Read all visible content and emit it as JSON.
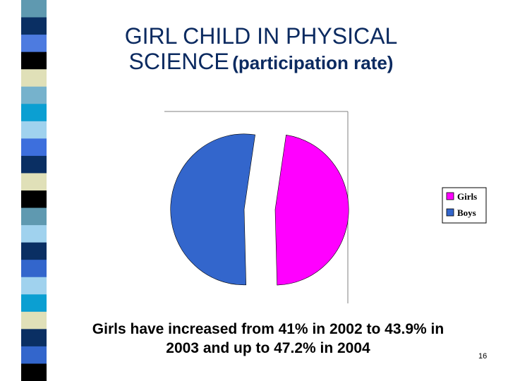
{
  "title": {
    "line1": "GIRL CHILD IN PHYSICAL",
    "line2_main": "SCIENCE",
    "line2_sub": "(participation rate)"
  },
  "chart_data": {
    "type": "pie",
    "categories": [
      "Girls",
      "Boys"
    ],
    "values": [
      47.2,
      52.8
    ],
    "colors": [
      "#ff00ff",
      "#3366cc"
    ],
    "legend_placement": "right",
    "exploded": true
  },
  "caption": {
    "line1": "Girls have increased from 41% in 2002 to 43.9% in",
    "line2": "2003 and up to 47.2% in 2004"
  },
  "slide_number": "16",
  "stripe_colors": [
    "#5f99b0",
    "#0a2f63",
    "#4d7be0",
    "#000000",
    "#e0e0b8",
    "#76b2cc",
    "#0b9fd2",
    "#a0d2ee",
    "#3d6fdd",
    "#0a2f63",
    "#e0e0b8",
    "#000000",
    "#5f99b0",
    "#a0d2ee",
    "#0a2f63",
    "#3366cc",
    "#a0d2ee",
    "#0b9fd2",
    "#e0e0b8",
    "#0a2f63",
    "#3366cc",
    "#000000"
  ]
}
